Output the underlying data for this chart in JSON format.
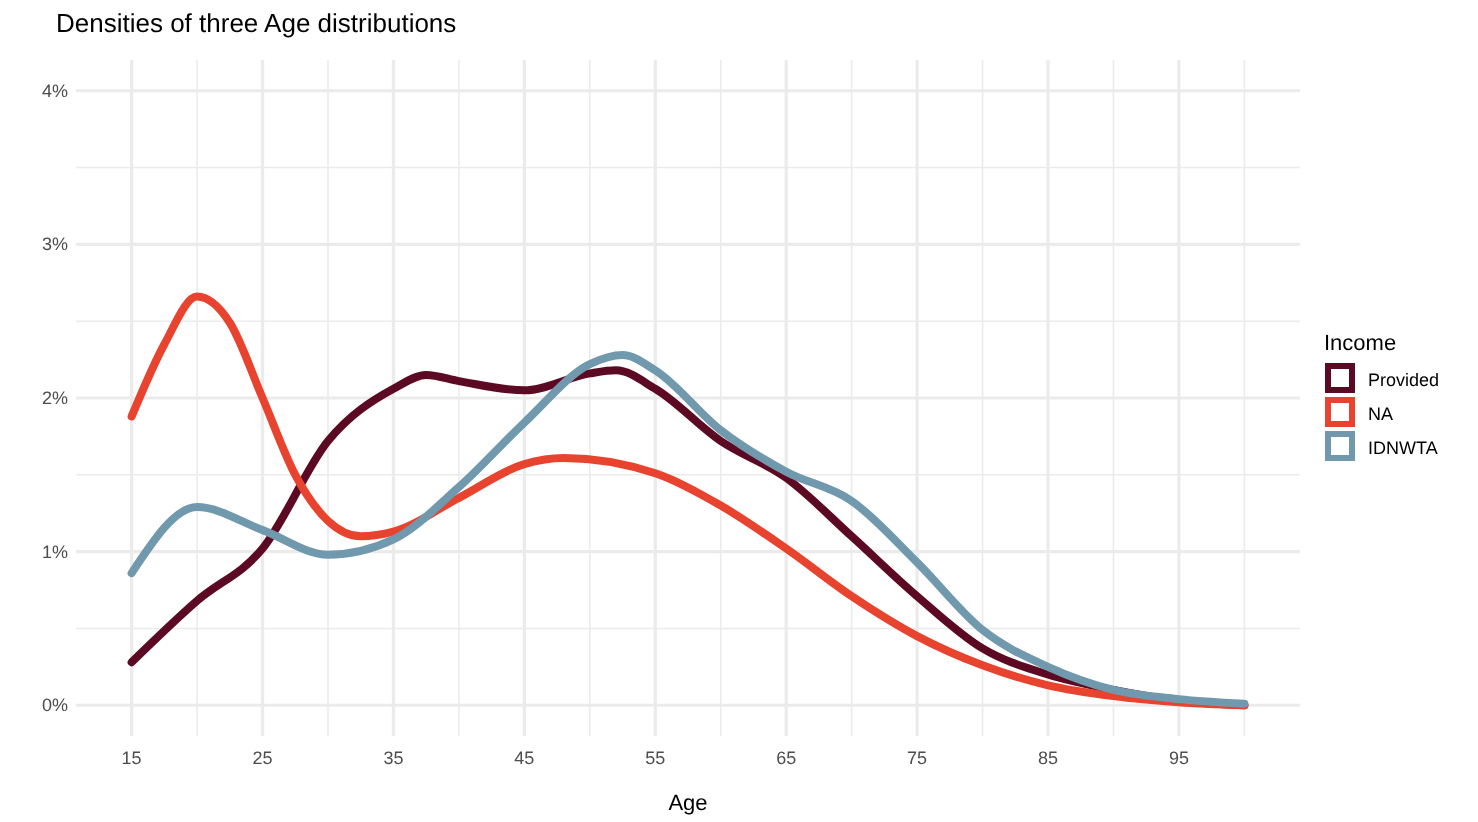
{
  "chart_data": {
    "type": "line",
    "title": "Densities of three Age distributions",
    "xlabel": "Age",
    "legend_title": "Income",
    "legend": "right",
    "grid": true,
    "line_style": "solid",
    "marker": "none",
    "xlim": [
      10.75,
      104.25
    ],
    "xticks": [
      15,
      {
        "value": 20,
        "label": null
      },
      25,
      {
        "value": 30,
        "label": null
      },
      35,
      {
        "value": 40,
        "label": null
      },
      45,
      {
        "value": 50,
        "label": null
      },
      55,
      {
        "value": 60,
        "label": null
      },
      65,
      {
        "value": 70,
        "label": null
      },
      75,
      {
        "value": 80,
        "label": null
      },
      85,
      {
        "value": 90,
        "label": null
      },
      95,
      {
        "value": 100,
        "label": null
      }
    ],
    "ylim": [
      -0.2,
      4.2
    ],
    "yticks": [
      {
        "value": 0,
        "label": "0%"
      },
      {
        "value": 0.5,
        "label": null
      },
      {
        "value": 1,
        "label": "1%"
      },
      {
        "value": 1.5,
        "label": null
      },
      {
        "value": 2,
        "label": "2%"
      },
      {
        "value": 2.5,
        "label": null
      },
      {
        "value": 3,
        "label": "3%"
      },
      {
        "value": 3.5,
        "label": null
      },
      {
        "value": 4,
        "label": "4%"
      }
    ],
    "series": [
      {
        "name": "Provided",
        "color": "#5c0a24",
        "x": [
          15,
          20,
          25,
          30,
          35,
          37.5,
          40,
          45,
          50,
          52,
          55,
          60,
          65,
          70,
          75,
          80,
          85,
          90,
          95,
          100
        ],
        "values": [
          0.28,
          0.68,
          1.02,
          1.72,
          2.06,
          2.15,
          2.11,
          2.05,
          2.16,
          2.18,
          2.06,
          1.72,
          1.48,
          1.1,
          0.71,
          0.37,
          0.2,
          0.1,
          0.03,
          0.0
        ]
      },
      {
        "name": "NA",
        "color": "#e8432f",
        "x": [
          15,
          17.5,
          20,
          22.5,
          25,
          27.5,
          30,
          32.5,
          35,
          40,
          45,
          48,
          55,
          60,
          65,
          70,
          75,
          80,
          85,
          90,
          95,
          100
        ],
        "values": [
          1.88,
          2.35,
          2.66,
          2.49,
          2.0,
          1.5,
          1.2,
          1.1,
          1.13,
          1.35,
          1.57,
          1.61,
          1.51,
          1.3,
          1.02,
          0.71,
          0.45,
          0.26,
          0.13,
          0.06,
          0.02,
          0.0
        ]
      },
      {
        "name": "IDNWTA",
        "color": "#7199ad",
        "x": [
          15,
          20,
          25,
          30,
          35,
          40,
          45,
          50,
          52.5,
          55,
          60,
          65,
          70,
          75,
          80,
          85,
          90,
          95,
          100
        ],
        "values": [
          0.86,
          1.29,
          1.14,
          0.98,
          1.08,
          1.42,
          1.84,
          2.22,
          2.28,
          2.18,
          1.79,
          1.52,
          1.33,
          0.93,
          0.49,
          0.25,
          0.1,
          0.04,
          0.01
        ]
      }
    ]
  }
}
